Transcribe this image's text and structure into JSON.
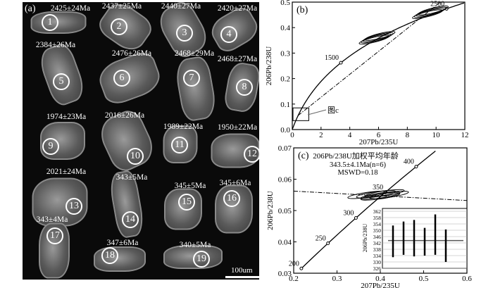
{
  "panel_a": {
    "label": "(a)",
    "scale_bar": "100um",
    "grains": [
      {
        "n": "1",
        "age": "2425±24Ma"
      },
      {
        "n": "2",
        "age": "2437±25Ma"
      },
      {
        "n": "3",
        "age": "2440±27Ma"
      },
      {
        "n": "4",
        "age": "2420±27Ma"
      },
      {
        "n": "5",
        "age": "2384±26Ma"
      },
      {
        "n": "6",
        "age": "2476±26Ma"
      },
      {
        "n": "7",
        "age": "2468±29Ma"
      },
      {
        "n": "8",
        "age": "2468±27Ma"
      },
      {
        "n": "9",
        "age": "1974±23Ma"
      },
      {
        "n": "10",
        "age": "2016±26Ma"
      },
      {
        "n": "11",
        "age": "1989±22Ma"
      },
      {
        "n": "12",
        "age": "1950±22Ma"
      },
      {
        "n": "13",
        "age": "2021±24Ma"
      },
      {
        "n": "14",
        "age": "343±5Ma"
      },
      {
        "n": "15",
        "age": "345±5Ma"
      },
      {
        "n": "16",
        "age": "345±6Ma"
      },
      {
        "n": "17",
        "age": "343±4Ma"
      },
      {
        "n": "18",
        "age": "347±6Ma"
      },
      {
        "n": "19",
        "age": "340±5Ma"
      }
    ]
  },
  "chart_data": [
    {
      "type": "scatter",
      "panel": "(b)",
      "xlabel": "207Pb/235U",
      "ylabel": "206Pb/238U",
      "xlim": [
        0,
        12
      ],
      "ylim": [
        0,
        0.5
      ],
      "xticks": [
        "0",
        "2",
        "4",
        "6",
        "8",
        "10",
        "12"
      ],
      "yticks": [
        "0.0",
        "0.1",
        "0.2",
        "0.3",
        "0.4",
        "0.5"
      ],
      "concordia_labels": [
        "1500",
        "2500"
      ],
      "annotation": "图c",
      "ellipse_clusters": [
        {
          "x": 5.9,
          "y": 0.36
        },
        {
          "x": 9.6,
          "y": 0.46
        }
      ],
      "discordia": [
        [
          0.4,
          0.055
        ],
        [
          10.3,
          0.5
        ]
      ]
    },
    {
      "type": "scatter",
      "panel": "(c)",
      "xlabel": "207Pb/235U",
      "ylabel": "206Pb/238U",
      "xlim": [
        0.2,
        0.6
      ],
      "ylim": [
        0.03,
        0.07
      ],
      "xticks": [
        "0.2",
        "0.3",
        "0.4",
        "0.5",
        "0.6"
      ],
      "yticks": [
        "0.03",
        "0.04",
        "0.05",
        "0.06",
        "0.07"
      ],
      "concordia_labels": [
        "200",
        "250",
        "300",
        "350",
        "400"
      ],
      "title": "206Pb/238U加权平均年龄",
      "annotation1": "343.5±4.1Ma(n=6)",
      "annotation2": "MSWD=0.18",
      "ellipses": [
        {
          "x": 0.37,
          "y": 0.055
        },
        {
          "x": 0.39,
          "y": 0.0552
        },
        {
          "x": 0.4,
          "y": 0.0548
        },
        {
          "x": 0.41,
          "y": 0.0555
        },
        {
          "x": 0.42,
          "y": 0.055
        },
        {
          "x": 0.4,
          "y": 0.0545
        }
      ],
      "discordia": [
        [
          0.2,
          0.0562
        ],
        [
          0.6,
          0.0532
        ]
      ]
    },
    {
      "type": "bar",
      "panel": "inset",
      "ylabel": "206Pb/238U",
      "ylim": [
        326,
        362
      ],
      "yticks": [
        "326",
        "330",
        "334",
        "338",
        "342",
        "346",
        "350",
        "354",
        "358",
        "362"
      ],
      "error_bars": [
        [
          333,
          353
        ],
        [
          334.5,
          355.5
        ],
        [
          333.5,
          356.5
        ],
        [
          334,
          351.5
        ],
        [
          334.5,
          360
        ],
        [
          330,
          350.5
        ]
      ],
      "mean": 343.5
    }
  ]
}
